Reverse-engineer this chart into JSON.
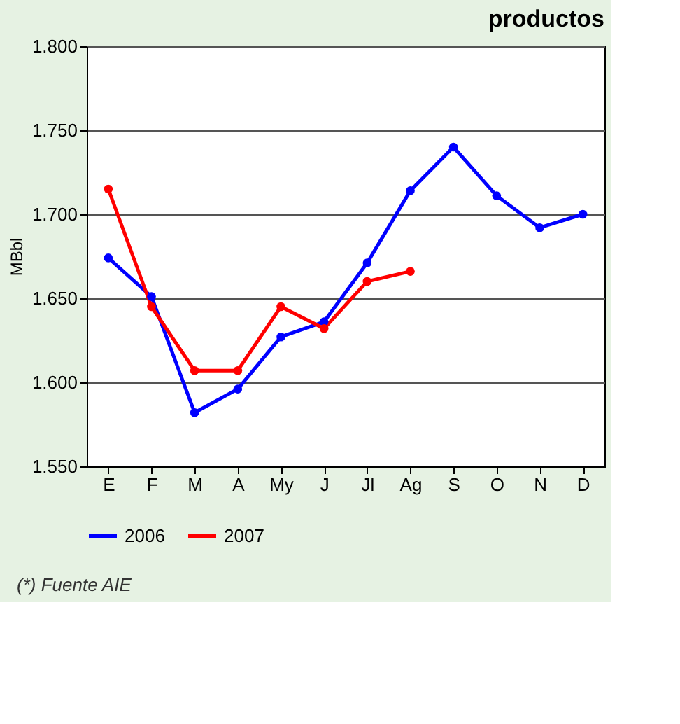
{
  "chart_data": {
    "type": "line",
    "title": "productos",
    "ylabel": "MBbl",
    "categories": [
      "E",
      "F",
      "M",
      "A",
      "My",
      "J",
      "Jl",
      "Ag",
      "S",
      "O",
      "N",
      "D"
    ],
    "series": [
      {
        "name": "2006",
        "color": "#0000ff",
        "values": [
          1.674,
          1.651,
          1.582,
          1.596,
          1.627,
          1.636,
          1.671,
          1.714,
          1.74,
          1.711,
          1.692,
          1.7
        ]
      },
      {
        "name": "2007",
        "color": "#ff0000",
        "values": [
          1.715,
          1.645,
          1.607,
          1.607,
          1.645,
          1.632,
          1.66,
          1.666,
          null,
          null,
          null,
          null
        ]
      }
    ],
    "ylim": [
      1.55,
      1.8
    ],
    "yticks": [
      {
        "value": 1.55,
        "label": "1.550"
      },
      {
        "value": 1.6,
        "label": "1.600"
      },
      {
        "value": 1.65,
        "label": "1.650"
      },
      {
        "value": 1.7,
        "label": "1.700"
      },
      {
        "value": 1.75,
        "label": "1.750"
      },
      {
        "value": 1.8,
        "label": "1.800"
      }
    ],
    "grid": "y",
    "legend": "bottom",
    "marker": "circle",
    "line_style": "solid",
    "annotations": [
      "(*) Fuente AIE"
    ]
  }
}
